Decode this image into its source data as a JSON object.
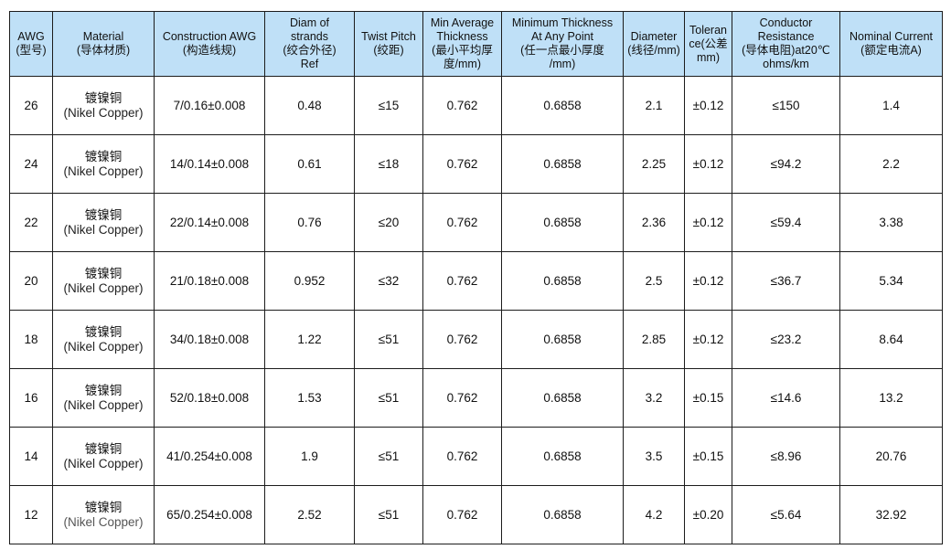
{
  "headers": [
    "AWG\n(型号)",
    "Material\n(导体材质)",
    "Construction AWG\n(构造线规)",
    "Diam of\nstrands\n(绞合外径)\nRef",
    "Twist Pitch\n(绞距)",
    "Min Average\nThickness\n(最小平均厚\n度/mm)",
    "Minimum Thickness\nAt Any Point\n(任一点最小厚度\n/mm)",
    "Diameter\n(线径/mm)",
    "Toleran\nce(公差\nmm)",
    "Conductor\nResistance\n(导体电阻)at20℃\nohms/km",
    "Nominal Current\n(额定电流A)"
  ],
  "rows": [
    {
      "awg": "26",
      "material_cn": "镀镍铜",
      "material_en": "(Nikel Copper)",
      "construction": "7/0.16±0.008",
      "diam_strands": "0.48",
      "twist_pitch": "≤15",
      "min_avg_thickness": "0.762",
      "min_thickness_any_point": "0.6858",
      "diameter": "2.1",
      "tolerance": "±0.12",
      "resistance": "≤150",
      "current": "1.4"
    },
    {
      "awg": "24",
      "material_cn": "镀镍铜",
      "material_en": "(Nikel Copper)",
      "construction": "14/0.14±0.008",
      "diam_strands": "0.61",
      "twist_pitch": "≤18",
      "min_avg_thickness": "0.762",
      "min_thickness_any_point": "0.6858",
      "diameter": "2.25",
      "tolerance": "±0.12",
      "resistance": "≤94.2",
      "current": "2.2"
    },
    {
      "awg": "22",
      "material_cn": "镀镍铜",
      "material_en": "(Nikel Copper)",
      "construction": "22/0.14±0.008",
      "diam_strands": "0.76",
      "twist_pitch": "≤20",
      "min_avg_thickness": "0.762",
      "min_thickness_any_point": "0.6858",
      "diameter": "2.36",
      "tolerance": "±0.12",
      "resistance": "≤59.4",
      "current": "3.38"
    },
    {
      "awg": "20",
      "material_cn": "镀镍铜",
      "material_en": "(Nikel Copper)",
      "construction": "21/0.18±0.008",
      "diam_strands": "0.952",
      "twist_pitch": "≤32",
      "min_avg_thickness": "0.762",
      "min_thickness_any_point": "0.6858",
      "diameter": "2.5",
      "tolerance": "±0.12",
      "resistance": "≤36.7",
      "current": "5.34"
    },
    {
      "awg": "18",
      "material_cn": "镀镍铜",
      "material_en": "(Nikel Copper)",
      "construction": "34/0.18±0.008",
      "diam_strands": "1.22",
      "twist_pitch": "≤51",
      "min_avg_thickness": "0.762",
      "min_thickness_any_point": "0.6858",
      "diameter": "2.85",
      "tolerance": "±0.12",
      "resistance": "≤23.2",
      "current": "8.64"
    },
    {
      "awg": "16",
      "material_cn": "镀镍铜",
      "material_en": "(Nikel Copper)",
      "construction": "52/0.18±0.008",
      "diam_strands": "1.53",
      "twist_pitch": "≤51",
      "min_avg_thickness": "0.762",
      "min_thickness_any_point": "0.6858",
      "diameter": "3.2",
      "tolerance": "±0.15",
      "resistance": "≤14.6",
      "current": "13.2"
    },
    {
      "awg": "14",
      "material_cn": "镀镍铜",
      "material_en": "(Nikel Copper)",
      "construction": "41/0.254±0.008",
      "diam_strands": "1.9",
      "twist_pitch": "≤51",
      "min_avg_thickness": "0.762",
      "min_thickness_any_point": "0.6858",
      "diameter": "3.5",
      "tolerance": "±0.15",
      "resistance": "≤8.96",
      "current": "20.76"
    },
    {
      "awg": "12",
      "material_cn": "镀镍铜",
      "material_en": "(Nikel Copper)",
      "construction": "65/0.254±0.008",
      "diam_strands": "2.52",
      "twist_pitch": "≤51",
      "min_avg_thickness": "0.762",
      "min_thickness_any_point": "0.6858",
      "diameter": "4.2",
      "tolerance": "±0.20",
      "resistance": "≤5.64",
      "current": "32.92"
    }
  ],
  "colors": {
    "header_bg": "#bfe0f7",
    "border": "#1c1c1c",
    "text": "#111111"
  }
}
